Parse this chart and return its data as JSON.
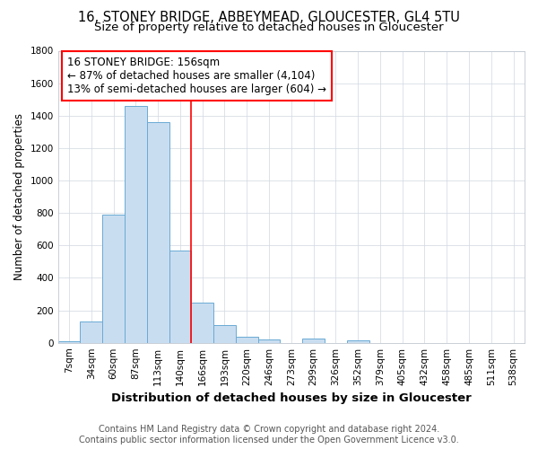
{
  "title1": "16, STONEY BRIDGE, ABBEYMEAD, GLOUCESTER, GL4 5TU",
  "title2": "Size of property relative to detached houses in Gloucester",
  "xlabel": "Distribution of detached houses by size in Gloucester",
  "ylabel": "Number of detached properties",
  "bar_labels": [
    "7sqm",
    "34sqm",
    "60sqm",
    "87sqm",
    "113sqm",
    "140sqm",
    "166sqm",
    "193sqm",
    "220sqm",
    "246sqm",
    "273sqm",
    "299sqm",
    "326sqm",
    "352sqm",
    "379sqm",
    "405sqm",
    "432sqm",
    "458sqm",
    "485sqm",
    "511sqm",
    "538sqm"
  ],
  "bar_values": [
    10,
    130,
    790,
    1460,
    1360,
    570,
    245,
    110,
    35,
    20,
    0,
    25,
    0,
    15,
    0,
    0,
    0,
    0,
    0,
    0,
    0
  ],
  "bar_color": "#c9ddf0",
  "bar_edge_color": "#6aaad4",
  "vline_color": "red",
  "vline_index": 5.5,
  "annotation_text": "16 STONEY BRIDGE: 156sqm\n← 87% of detached houses are smaller (4,104)\n13% of semi-detached houses are larger (604) →",
  "footnote1": "Contains HM Land Registry data © Crown copyright and database right 2024.",
  "footnote2": "Contains public sector information licensed under the Open Government Licence v3.0.",
  "ylim": [
    0,
    1800
  ],
  "yticks": [
    0,
    200,
    400,
    600,
    800,
    1000,
    1200,
    1400,
    1600,
    1800
  ],
  "title1_fontsize": 10.5,
  "title2_fontsize": 9.5,
  "xlabel_fontsize": 9.5,
  "ylabel_fontsize": 8.5,
  "tick_fontsize": 7.5,
  "annotation_fontsize": 8.5,
  "footnote_fontsize": 7.0
}
